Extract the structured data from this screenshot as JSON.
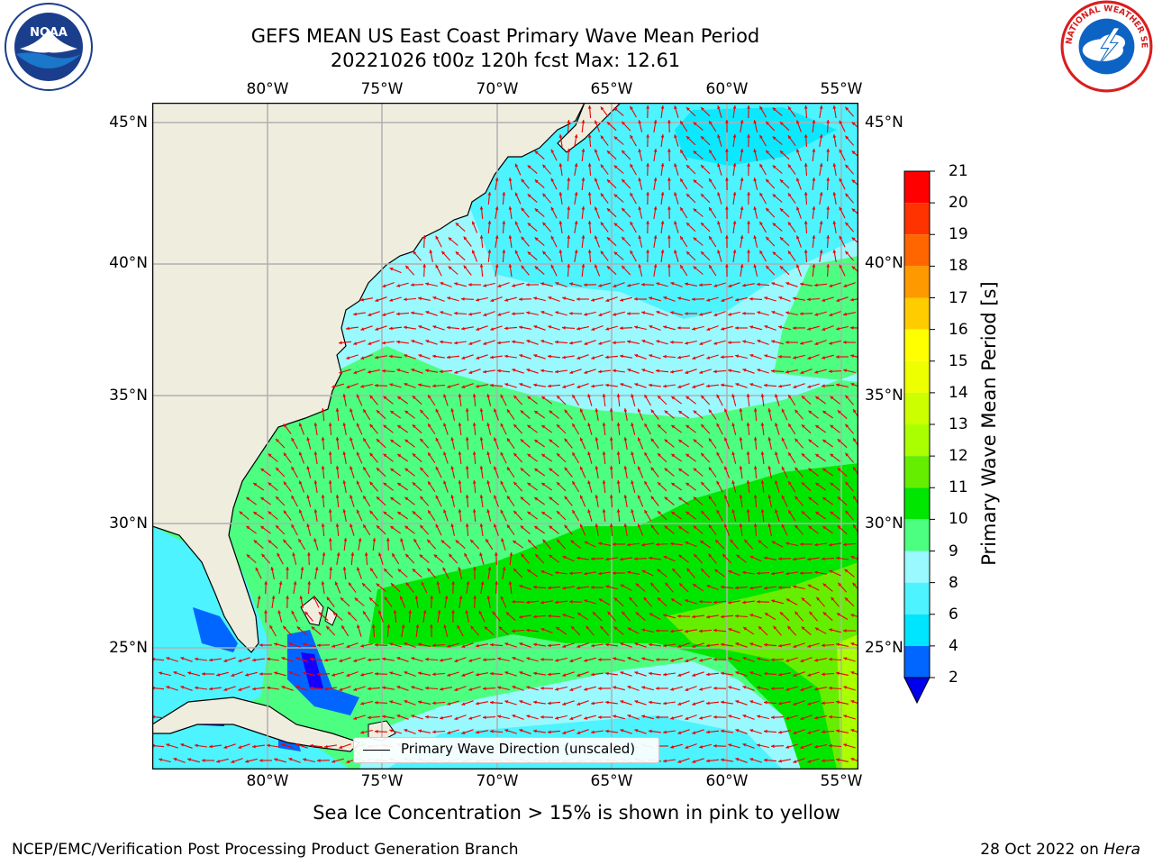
{
  "title": {
    "line1": "GEFS MEAN US East Coast Primary Wave Mean Period",
    "line2": "20221026 t00z 120h fcst   Max: 12.61"
  },
  "axes": {
    "lon_labels": [
      "80°W",
      "75°W",
      "70°W",
      "65°W",
      "60°W",
      "55°W"
    ],
    "lat_labels": [
      "45°N",
      "40°N",
      "35°N",
      "30°N",
      "25°N"
    ]
  },
  "colorbar": {
    "label": "Primary Wave Mean Period [s]",
    "levels": [
      "2",
      "4",
      "6",
      "8",
      "9",
      "10",
      "11",
      "12",
      "13",
      "14",
      "15",
      "16",
      "17",
      "18",
      "19",
      "20",
      "21"
    ],
    "colors": [
      "#0000ff",
      "#0066ff",
      "#00e5ff",
      "#4df3ff",
      "#99f9ff",
      "#4dff80",
      "#00e600",
      "#66ee00",
      "#aaff00",
      "#ccff00",
      "#eeff00",
      "#ffff00",
      "#ffcc00",
      "#ff9900",
      "#ff6600",
      "#ff3300",
      "#ff0000"
    ],
    "extend_min_color": "#0000ee"
  },
  "legend": {
    "label": "Primary Wave Direction (unscaled)"
  },
  "ice_note": "Sea Ice Concentration > 15% is shown in pink to yellow",
  "credit_left": "NCEP/EMC/Verification Post Processing Product Generation Branch",
  "credit_right_date": "28 Oct 2022 on",
  "credit_right_machine": "Hera",
  "logos": {
    "noaa_text": "NOAA",
    "nws_text": "NATIONAL WEATHER SERVICE"
  },
  "map_colors": {
    "land": "#efedde",
    "coast": "#000000",
    "grid": "#b0b0b0",
    "arrow": "#ee0000"
  }
}
